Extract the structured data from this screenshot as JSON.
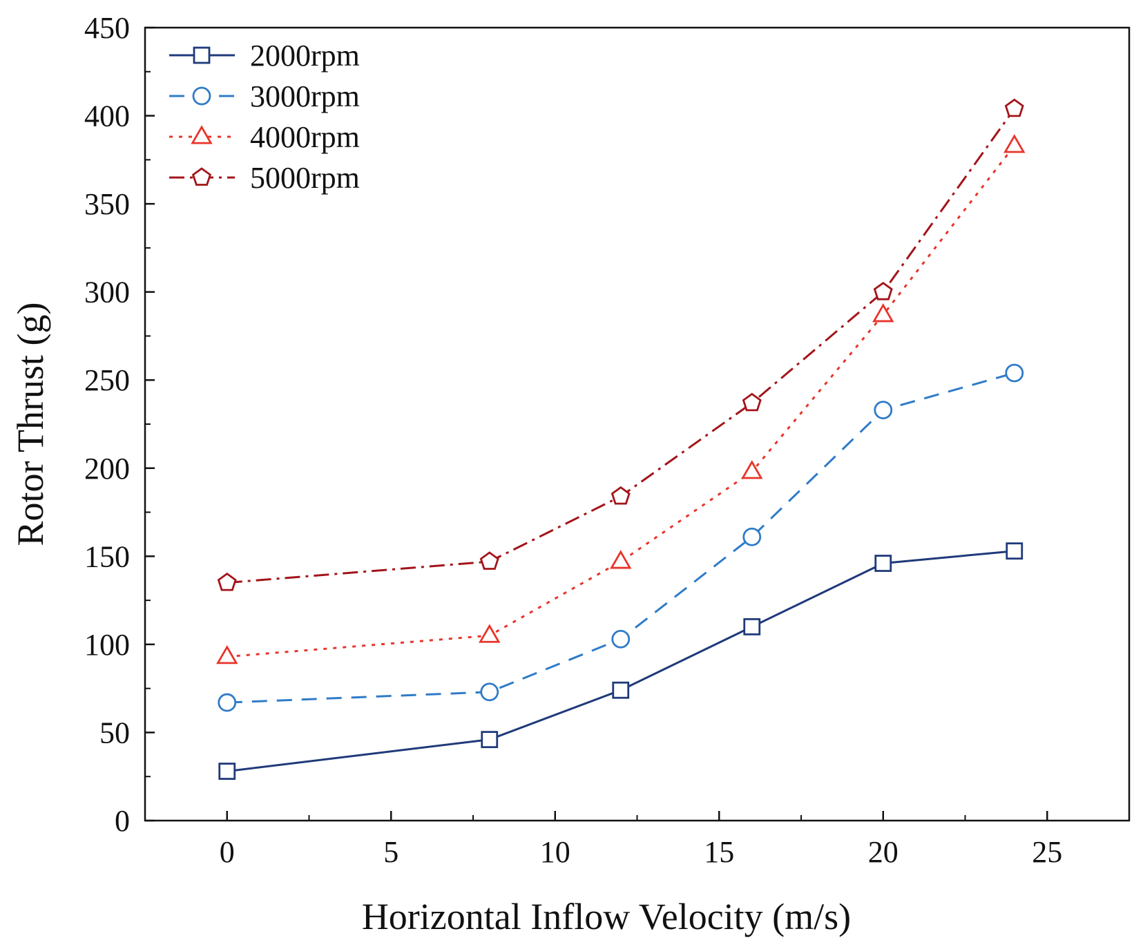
{
  "chart_data": {
    "type": "line",
    "title": "",
    "xlabel": "Horizontal Inflow Velocity (m/s)",
    "ylabel": "Rotor Thrust (g)",
    "xlim": [
      -2.5,
      27.5
    ],
    "ylim": [
      0,
      450
    ],
    "xticks": [
      0,
      5,
      10,
      15,
      20,
      25
    ],
    "yticks": [
      0,
      50,
      100,
      150,
      200,
      250,
      300,
      350,
      400,
      450
    ],
    "grid": false,
    "legend_position": "top-left",
    "x": [
      0,
      8,
      12,
      16,
      20,
      24
    ],
    "series": [
      {
        "name": "2000rpm",
        "values": [
          28,
          46,
          74,
          110,
          146,
          153
        ],
        "color": "#1f3a7a",
        "marker": "square",
        "line_style": "solid"
      },
      {
        "name": "3000rpm",
        "values": [
          67,
          73,
          103,
          161,
          233,
          254
        ],
        "color": "#2f7bc8",
        "marker": "circle",
        "line_style": "dashed"
      },
      {
        "name": "4000rpm",
        "values": [
          93,
          105,
          147,
          198,
          287,
          383
        ],
        "color": "#e8342a",
        "marker": "triangle",
        "line_style": "dotted"
      },
      {
        "name": "5000rpm",
        "values": [
          135,
          147,
          184,
          237,
          300,
          404
        ],
        "color": "#a3141a",
        "marker": "pentagon",
        "line_style": "dash-dot"
      }
    ]
  }
}
